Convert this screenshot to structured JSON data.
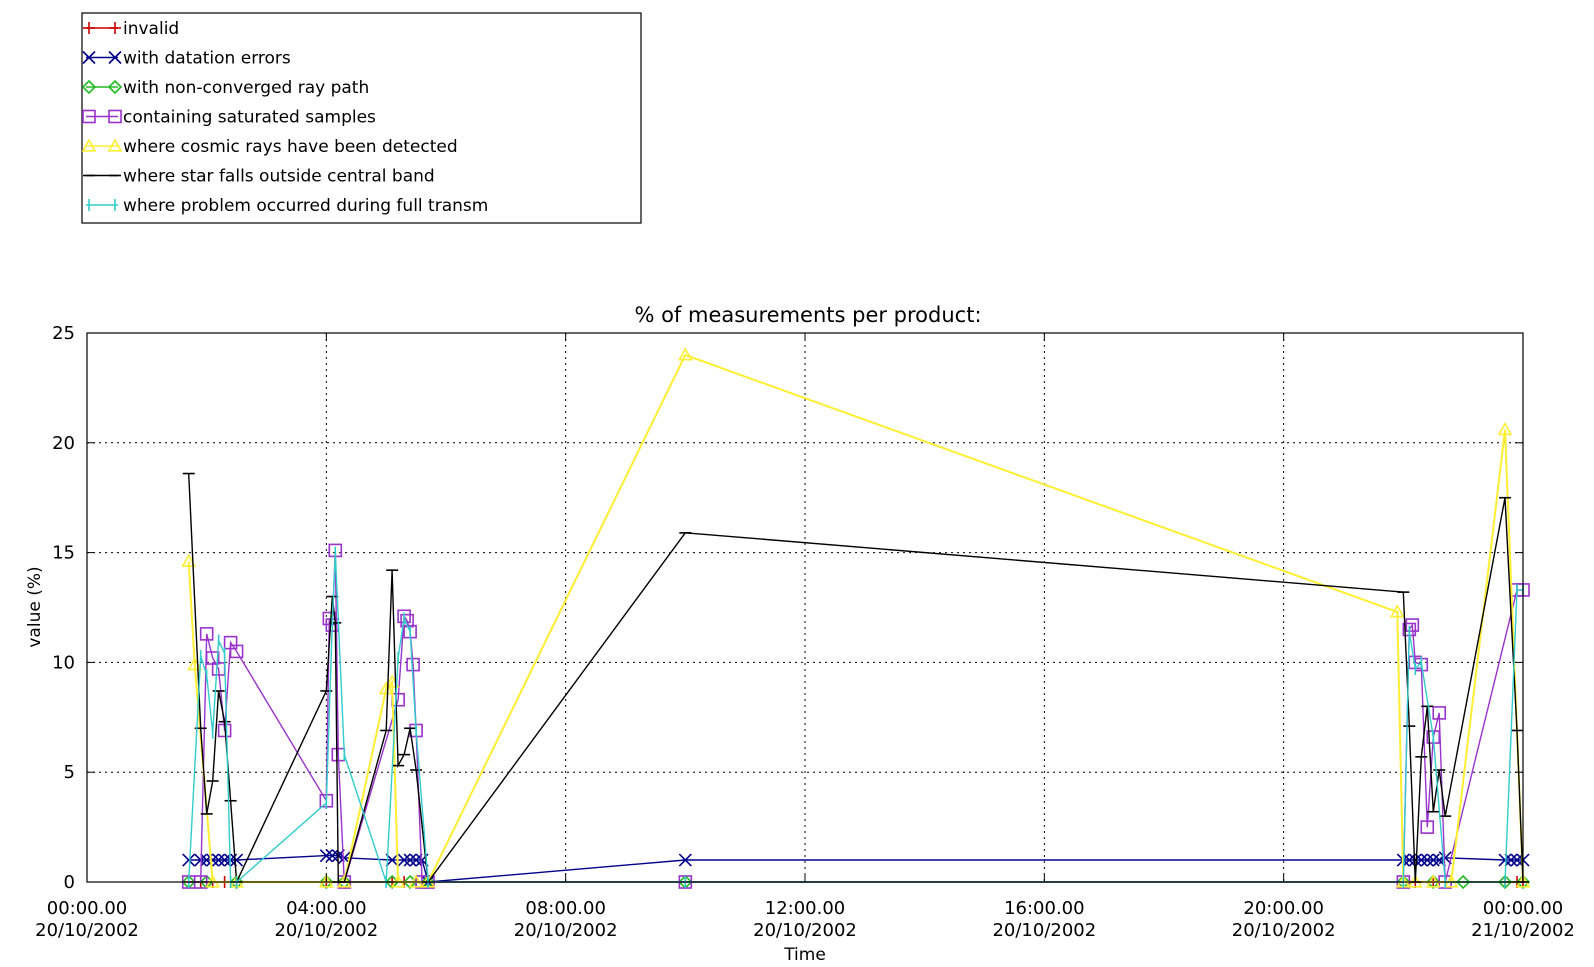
{
  "chart_data": {
    "type": "line",
    "title": "% of measurements per product:",
    "xlabel": "Time",
    "ylabel": "value (%)",
    "ylim": [
      0,
      25
    ],
    "xlim_hours": [
      0,
      24
    ],
    "grid": true,
    "legend_position": "top-left",
    "y_ticks": [
      0,
      5,
      10,
      15,
      20,
      25
    ],
    "x_ticks": [
      {
        "hour": 0,
        "time": "00:00.00",
        "date": "20/10/2002"
      },
      {
        "hour": 4,
        "time": "04:00.00",
        "date": "20/10/2002"
      },
      {
        "hour": 8,
        "time": "08:00.00",
        "date": "20/10/2002"
      },
      {
        "hour": 12,
        "time": "12:00.00",
        "date": "20/10/2002"
      },
      {
        "hour": 16,
        "time": "16:00.00",
        "date": "20/10/2002"
      },
      {
        "hour": 20,
        "time": "20:00.00",
        "date": "20/10/2002"
      },
      {
        "hour": 24,
        "time": "00:00.00",
        "date": "21/10/2002"
      }
    ],
    "series": [
      {
        "name": "invalid",
        "color": "#cc0000",
        "marker": "plus",
        "x": [
          1.7,
          1.9,
          2.1,
          2.3,
          2.5,
          4.0,
          4.2,
          5.1,
          5.3,
          5.5,
          5.7,
          10.0,
          22.0,
          22.2,
          22.5,
          22.8,
          23.7,
          23.9,
          24.0
        ],
        "y": [
          0,
          0,
          0,
          0,
          0,
          0,
          0,
          0,
          0,
          0,
          0,
          0,
          0,
          0,
          0,
          0,
          0,
          0,
          0
        ]
      },
      {
        "name": "with datation errors",
        "color": "#00008b",
        "marker": "x",
        "x": [
          1.7,
          1.9,
          2.0,
          2.1,
          2.2,
          2.3,
          2.4,
          2.5,
          4.0,
          4.1,
          4.2,
          4.3,
          5.1,
          5.3,
          5.4,
          5.5,
          5.6,
          5.7,
          10.0,
          22.0,
          22.1,
          22.2,
          22.3,
          22.4,
          22.5,
          22.6,
          22.7,
          23.7,
          23.8,
          23.9,
          24.0
        ],
        "y": [
          1.0,
          1.0,
          1.0,
          1.0,
          1.0,
          1.0,
          1.0,
          1.0,
          1.2,
          1.2,
          1.2,
          1.1,
          1.0,
          1.0,
          1.0,
          1.0,
          1.0,
          0.0,
          1.0,
          1.0,
          1.0,
          1.0,
          1.0,
          1.0,
          1.0,
          1.0,
          1.1,
          1.0,
          1.0,
          1.0,
          1.0
        ]
      },
      {
        "name": "with non-converged ray path",
        "color": "#22bb22",
        "marker": "diamond",
        "x": [
          1.7,
          2.0,
          2.5,
          4.0,
          4.3,
          5.1,
          5.4,
          5.7,
          10.0,
          22.0,
          22.5,
          23.0,
          23.7,
          24.0
        ],
        "y": [
          0,
          0,
          0,
          0,
          0,
          0,
          0,
          0,
          0,
          0,
          0,
          0,
          0,
          0
        ]
      },
      {
        "name": "containing saturated samples",
        "color": "#9933cc",
        "marker": "square",
        "x": [
          1.7,
          1.9,
          2.0,
          2.1,
          2.2,
          2.3,
          2.4,
          2.5,
          4.0,
          4.05,
          4.1,
          4.15,
          4.2,
          4.3,
          5.2,
          5.3,
          5.35,
          5.4,
          5.45,
          5.5,
          5.6,
          5.7,
          10.0,
          22.0,
          22.1,
          22.15,
          22.2,
          22.3,
          22.4,
          22.5,
          22.6,
          22.7,
          23.9,
          24.0
        ],
        "y": [
          0,
          0,
          11.3,
          10.2,
          9.7,
          6.9,
          10.9,
          10.5,
          3.7,
          12.0,
          11.7,
          15.1,
          5.8,
          0,
          8.3,
          12.1,
          11.9,
          11.4,
          9.9,
          6.9,
          0,
          0,
          0,
          0,
          11.5,
          11.7,
          10.0,
          9.9,
          2.5,
          6.6,
          7.7,
          0,
          13.3,
          13.3
        ]
      },
      {
        "name": "where cosmic rays have been detected",
        "color": "#ffee33",
        "marker": "triangle",
        "x": [
          1.7,
          1.8,
          2.1,
          2.5,
          4.0,
          4.3,
          5.0,
          5.1,
          5.2,
          5.5,
          5.7,
          10.0,
          21.9,
          22.0,
          22.2,
          22.5,
          22.8,
          23.7,
          24.0
        ],
        "y": [
          14.6,
          9.9,
          0,
          0,
          0,
          0,
          8.8,
          9.1,
          0,
          0,
          0,
          24.0,
          12.3,
          0,
          0,
          0,
          0,
          20.6,
          0
        ]
      },
      {
        "name": "where star falls outside central band",
        "color": "#000000",
        "marker": "bar",
        "x": [
          1.7,
          1.9,
          2.0,
          2.1,
          2.2,
          2.3,
          2.4,
          2.5,
          4.0,
          4.1,
          4.15,
          4.2,
          4.3,
          5.0,
          5.1,
          5.2,
          5.3,
          5.4,
          5.5,
          5.7,
          10.0,
          22.0,
          22.1,
          22.2,
          22.3,
          22.4,
          22.5,
          22.6,
          22.7,
          23.7,
          23.9,
          24.0
        ],
        "y": [
          18.6,
          7.0,
          3.1,
          4.6,
          8.7,
          7.3,
          3.7,
          0,
          8.7,
          13.0,
          11.8,
          0,
          0,
          6.9,
          14.2,
          5.3,
          5.8,
          7.0,
          5.1,
          0,
          15.9,
          13.2,
          7.1,
          0,
          5.7,
          8.0,
          3.2,
          5.1,
          3.0,
          17.5,
          6.9,
          0
        ]
      },
      {
        "name": "where problem occurred during full transm",
        "color": "#33cccc",
        "marker": "vbar",
        "x": [
          1.7,
          1.9,
          2.0,
          2.1,
          2.2,
          2.3,
          2.4,
          2.5,
          4.0,
          4.1,
          4.15,
          4.3,
          5.0,
          5.2,
          5.3,
          5.4,
          5.5,
          5.7,
          10.0,
          22.0,
          22.1,
          22.2,
          22.3,
          22.5,
          22.7,
          23.7,
          23.9,
          24.0
        ],
        "y": [
          0,
          10.3,
          9.4,
          6.8,
          11.0,
          10.4,
          0,
          0,
          3.6,
          11.8,
          15.0,
          5.8,
          0,
          10.2,
          12.0,
          11.4,
          6.9,
          0,
          0,
          0,
          11.4,
          9.7,
          10.0,
          6.6,
          0,
          0,
          13.3,
          13.3
        ]
      }
    ]
  }
}
